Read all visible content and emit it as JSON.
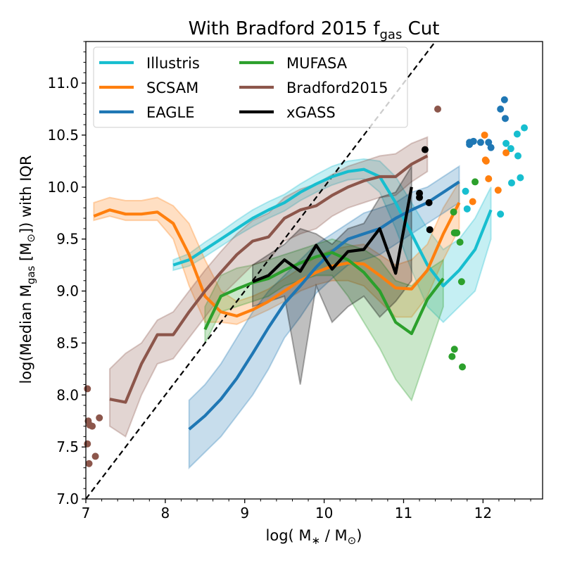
{
  "chart_data": {
    "type": "line",
    "title": "With Bradford 2015 f",
    "title_sub": "gas",
    "title_suffix": " Cut",
    "xlabel": "log( M",
    "xlabel_star": "∗",
    "xlabel_mid": " / M",
    "xlabel_sun": "⊙",
    "xlabel_end": ")",
    "ylabel": "log(Median M",
    "ylabel_sub": "gas",
    "ylabel_mid": " [M",
    "ylabel_sun": "⊙",
    "ylabel_end": "]) with IQR",
    "xlim": [
      7.0,
      12.75
    ],
    "ylim": [
      7.0,
      11.4
    ],
    "xticks": [
      "7",
      "8",
      "9",
      "10",
      "11",
      "12"
    ],
    "yticks": [
      "7.0",
      "7.5",
      "8.0",
      "8.5",
      "9.0",
      "9.5",
      "10.0",
      "10.5",
      "11.0"
    ],
    "grid": false,
    "legend_position": "top-left",
    "one_to_one_line": true,
    "series": [
      {
        "name": "Illustris",
        "color": "#17becf",
        "x": [
          8.1,
          8.3,
          8.5,
          8.7,
          8.9,
          9.1,
          9.3,
          9.5,
          9.7,
          9.9,
          10.1,
          10.3,
          10.5,
          10.7,
          10.9,
          11.1,
          11.3,
          11.5,
          11.7,
          11.9,
          12.1
        ],
        "y": [
          9.25,
          9.3,
          9.4,
          9.5,
          9.6,
          9.7,
          9.78,
          9.85,
          9.95,
          10.03,
          10.1,
          10.15,
          10.17,
          10.1,
          9.85,
          9.55,
          9.25,
          9.05,
          9.2,
          9.4,
          9.78
        ],
        "q1": [
          9.2,
          9.24,
          9.33,
          9.43,
          9.53,
          9.62,
          9.7,
          9.77,
          9.87,
          9.95,
          10.02,
          10.07,
          10.08,
          9.95,
          9.6,
          9.2,
          8.85,
          8.7,
          8.85,
          9.0,
          9.5
        ],
        "q3": [
          9.3,
          9.36,
          9.47,
          9.57,
          9.68,
          9.78,
          9.86,
          9.93,
          10.03,
          10.12,
          10.2,
          10.25,
          10.27,
          10.25,
          10.1,
          9.85,
          9.6,
          9.4,
          9.5,
          9.7,
          10.0
        ]
      },
      {
        "name": "SCSAM",
        "color": "#ff7f0e",
        "x": [
          7.1,
          7.3,
          7.5,
          7.7,
          7.9,
          8.1,
          8.3,
          8.5,
          8.7,
          8.9,
          9.1,
          9.3,
          9.5,
          9.7,
          9.9,
          10.1,
          10.3,
          10.5,
          10.7,
          10.9,
          11.1,
          11.3,
          11.5,
          11.7
        ],
        "y": [
          9.72,
          9.78,
          9.74,
          9.74,
          9.76,
          9.65,
          9.35,
          8.95,
          8.8,
          8.76,
          8.82,
          8.9,
          9.0,
          9.1,
          9.18,
          9.24,
          9.27,
          9.26,
          9.15,
          9.03,
          9.02,
          9.2,
          9.55,
          9.85
        ],
        "q1": [
          9.68,
          9.72,
          9.68,
          9.68,
          9.68,
          9.5,
          9.05,
          8.7,
          8.7,
          8.68,
          8.75,
          8.82,
          8.9,
          9.0,
          9.06,
          9.1,
          9.1,
          9.05,
          8.9,
          8.75,
          8.75,
          8.95,
          9.3,
          9.6
        ],
        "q3": [
          9.85,
          9.9,
          9.87,
          9.87,
          9.9,
          9.82,
          9.65,
          9.3,
          9.0,
          8.9,
          8.95,
          9.02,
          9.12,
          9.22,
          9.33,
          9.4,
          9.43,
          9.45,
          9.35,
          9.25,
          9.3,
          9.45,
          9.8,
          10.05
        ]
      },
      {
        "name": "EAGLE",
        "color": "#1f77b4",
        "x": [
          8.3,
          8.5,
          8.7,
          8.9,
          9.1,
          9.3,
          9.5,
          9.7,
          9.9,
          10.1,
          10.3,
          10.5,
          10.7,
          10.9,
          11.1,
          11.3,
          11.5,
          11.7
        ],
        "y": [
          7.67,
          7.8,
          7.96,
          8.16,
          8.4,
          8.65,
          8.88,
          9.05,
          9.23,
          9.38,
          9.5,
          9.55,
          9.6,
          9.7,
          9.78,
          9.85,
          9.95,
          10.05
        ],
        "q1": [
          7.3,
          7.45,
          7.6,
          7.8,
          8.0,
          8.25,
          8.55,
          8.75,
          8.98,
          9.12,
          9.25,
          9.3,
          9.35,
          9.45,
          9.55,
          9.65,
          9.75,
          9.85
        ],
        "q3": [
          7.95,
          8.1,
          8.3,
          8.55,
          8.8,
          9.0,
          9.15,
          9.3,
          9.45,
          9.55,
          9.65,
          9.75,
          9.8,
          9.85,
          9.95,
          10.0,
          10.1,
          10.2
        ]
      },
      {
        "name": "MUFASA",
        "color": "#2ca02c",
        "x": [
          8.5,
          8.7,
          8.9,
          9.1,
          9.3,
          9.5,
          9.7,
          9.9,
          10.1,
          10.3,
          10.5,
          10.7,
          10.9,
          11.1,
          11.3,
          11.5
        ],
        "y": [
          8.63,
          8.95,
          9.02,
          9.08,
          9.12,
          9.2,
          9.27,
          9.33,
          9.37,
          9.3,
          9.18,
          9.0,
          8.7,
          8.59,
          8.92,
          9.12
        ],
        "q1": [
          8.5,
          8.8,
          8.85,
          8.9,
          8.95,
          9.05,
          9.1,
          9.15,
          9.15,
          8.95,
          8.7,
          8.45,
          8.15,
          7.95,
          8.4,
          8.85
        ],
        "q3": [
          8.85,
          9.15,
          9.22,
          9.25,
          9.3,
          9.35,
          9.4,
          9.45,
          9.5,
          9.45,
          9.4,
          9.3,
          9.1,
          9.05,
          9.2,
          9.3
        ]
      },
      {
        "name": "Bradford2015",
        "color": "#8c564b",
        "x": [
          7.3,
          7.5,
          7.7,
          7.9,
          8.1,
          8.3,
          8.5,
          8.7,
          8.9,
          9.1,
          9.3,
          9.5,
          9.7,
          9.9,
          10.1,
          10.3,
          10.5,
          10.7,
          10.9,
          11.1,
          11.3
        ],
        "y": [
          7.96,
          7.93,
          8.3,
          8.58,
          8.58,
          8.8,
          9.0,
          9.18,
          9.35,
          9.48,
          9.52,
          9.7,
          9.78,
          9.82,
          9.92,
          10.0,
          10.06,
          10.1,
          10.1,
          10.22,
          10.3
        ],
        "q1": [
          7.7,
          7.6,
          8.0,
          8.3,
          8.35,
          8.55,
          8.75,
          8.95,
          9.1,
          9.25,
          9.3,
          9.48,
          9.55,
          9.6,
          9.72,
          9.8,
          9.85,
          9.9,
          9.92,
          10.05,
          10.15
        ],
        "q3": [
          8.25,
          8.4,
          8.5,
          8.72,
          8.8,
          9.0,
          9.2,
          9.38,
          9.55,
          9.68,
          9.75,
          9.9,
          9.98,
          10.03,
          10.12,
          10.2,
          10.25,
          10.3,
          10.32,
          10.42,
          10.48
        ]
      },
      {
        "name": "xGASS",
        "color": "#000000",
        "x": [
          9.1,
          9.3,
          9.5,
          9.7,
          9.9,
          10.1,
          10.3,
          10.5,
          10.7,
          10.9,
          11.1
        ],
        "y": [
          9.09,
          9.15,
          9.3,
          9.19,
          9.44,
          9.21,
          9.38,
          9.4,
          9.6,
          9.17,
          10.0
        ],
        "q1": [
          8.85,
          8.9,
          8.95,
          8.1,
          9.05,
          8.7,
          8.85,
          8.95,
          8.75,
          8.9,
          9.1
        ],
        "q3": [
          9.25,
          9.35,
          9.45,
          9.6,
          9.55,
          9.45,
          9.6,
          9.65,
          9.9,
          9.95,
          10.2
        ]
      }
    ],
    "scatter_points": [
      {
        "series": "Bradford2015",
        "x": [
          7.02,
          7.03,
          7.05,
          7.02,
          7.08,
          7.04,
          7.12,
          7.17,
          11.43
        ],
        "y": [
          8.06,
          7.75,
          7.71,
          7.53,
          7.7,
          7.34,
          7.41,
          7.78,
          10.75
        ]
      },
      {
        "series": "xGASS",
        "x": [
          11.27,
          11.2,
          11.2,
          11.32,
          11.33
        ],
        "y": [
          10.36,
          9.94,
          9.9,
          9.85,
          9.59
        ]
      },
      {
        "series": "EAGLE",
        "x": [
          11.83,
          11.83,
          11.88,
          11.97,
          12.07,
          12.1,
          12.22,
          12.27,
          12.28
        ],
        "y": [
          10.41,
          10.43,
          10.44,
          10.43,
          10.43,
          10.38,
          10.75,
          10.84,
          10.66
        ]
      },
      {
        "series": "Illustris",
        "x": [
          11.78,
          11.8,
          12.22,
          12.29,
          12.35,
          12.36,
          12.43,
          12.44,
          12.47,
          12.52
        ],
        "y": [
          9.96,
          9.79,
          9.74,
          10.42,
          10.37,
          10.04,
          10.51,
          10.3,
          10.09,
          10.57
        ]
      },
      {
        "series": "SCSAM",
        "x": [
          11.87,
          12.02,
          12.03,
          12.04,
          12.07,
          12.19,
          12.29
        ],
        "y": [
          9.86,
          10.5,
          10.26,
          10.25,
          10.08,
          9.97,
          10.33
        ]
      },
      {
        "series": "MUFASA",
        "x": [
          11.63,
          11.64,
          11.66,
          11.67,
          11.71,
          11.73,
          11.9,
          11.61,
          11.64,
          11.74
        ],
        "y": [
          9.76,
          9.56,
          9.56,
          9.56,
          9.47,
          9.09,
          10.05,
          8.37,
          8.44,
          8.27
        ]
      }
    ]
  }
}
